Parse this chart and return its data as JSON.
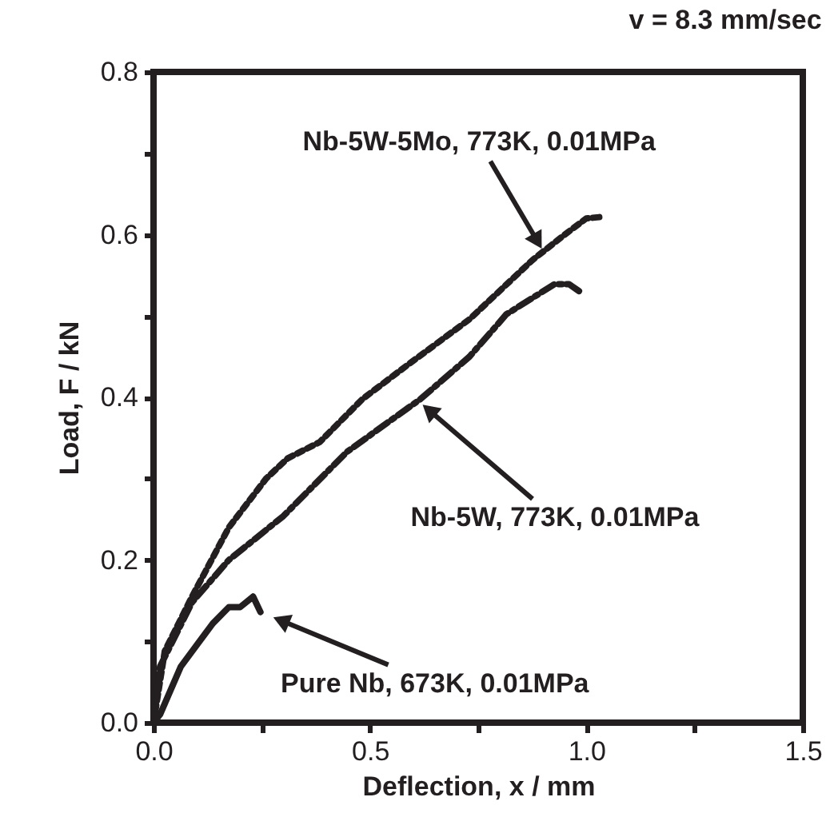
{
  "chart_data": {
    "type": "line",
    "title": "v = 8.3 mm/sec",
    "xlabel": "Deflection, x / mm",
    "ylabel": "Load, F / kN",
    "xlim": [
      0,
      1.5
    ],
    "ylim": [
      0,
      0.8
    ],
    "xticks": [
      {
        "value": 0,
        "label": "0.0"
      },
      {
        "value": 0.25,
        "label": null
      },
      {
        "value": 0.5,
        "label": "0.5"
      },
      {
        "value": 0.75,
        "label": null
      },
      {
        "value": 1.0,
        "label": "1.0"
      },
      {
        "value": 1.25,
        "label": null
      },
      {
        "value": 1.5,
        "label": "1.5"
      }
    ],
    "yticks": [
      {
        "value": 0,
        "label": "0.0"
      },
      {
        "value": 0.1,
        "label": null
      },
      {
        "value": 0.2,
        "label": "0.2"
      },
      {
        "value": 0.3,
        "label": null
      },
      {
        "value": 0.4,
        "label": "0.4"
      },
      {
        "value": 0.5,
        "label": null
      },
      {
        "value": 0.6,
        "label": "0.6"
      },
      {
        "value": 0.7,
        "label": null
      },
      {
        "value": 0.8,
        "label": "0.8"
      }
    ],
    "grid": false,
    "marker": "none",
    "series": [
      {
        "color": "#231f20",
        "line_style": "dotted",
        "x": [
          0,
          0.026,
          0.089,
          0.174,
          0.26,
          0.31,
          0.384,
          0.483,
          0.58,
          0.73,
          0.876,
          0.95,
          1.0,
          1.04
        ],
        "values": [
          0,
          0.088,
          0.155,
          0.24,
          0.3,
          0.325,
          0.345,
          0.398,
          0.437,
          0.496,
          0.569,
          0.6,
          0.62,
          0.622
        ]
      },
      {
        "color": "#231f20",
        "line_style": "dashed",
        "x": [
          0,
          0.015,
          0.089,
          0.174,
          0.3,
          0.447,
          0.617,
          0.73,
          0.815,
          0.926,
          0.96,
          0.99
        ],
        "values": [
          0,
          0.069,
          0.148,
          0.2,
          0.254,
          0.333,
          0.398,
          0.45,
          0.502,
          0.539,
          0.539,
          0.528
        ]
      },
      {
        "color": "#231f20",
        "line_style": "solid",
        "x": [
          0,
          0.015,
          0.063,
          0.137,
          0.174,
          0.2,
          0.23,
          0.247
        ],
        "values": [
          0,
          0.01,
          0.069,
          0.122,
          0.142,
          0.142,
          0.155,
          0.136
        ]
      }
    ],
    "annotations": [
      {
        "text": "Nb-5W-5Mo, 773K, 0.01MPa",
        "x": 0.9,
        "y": 0.58
      },
      {
        "text": "Nb-5W, 773K, 0.01MPa",
        "x": 0.617,
        "y": 0.393
      },
      {
        "text": "Pure Nb, 673K, 0.01MPa",
        "x": 0.247,
        "y": 0.136
      }
    ]
  }
}
